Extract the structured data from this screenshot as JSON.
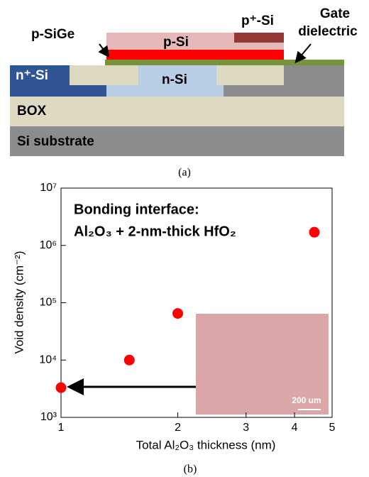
{
  "diagram": {
    "layers": [
      "Si substrate",
      "BOX",
      "n⁺-Si",
      "n-Si",
      "p-Si",
      "p⁺-Si"
    ],
    "callouts": [
      "p-SiGe",
      "Gate",
      "dielectric"
    ],
    "caption": "(a)"
  },
  "chart_data": {
    "type": "scatter",
    "caption": "(b)",
    "x_label": "Total Al₂O₃ thickness (nm)",
    "y_label": "Void density (cm⁻²)",
    "annotations": [
      "Bonding interface:",
      "Al₂O₃ + 2-nm-thick HfO₂"
    ],
    "inset_scale": "200 um",
    "x": [
      1,
      1.5,
      2,
      4.5
    ],
    "values": [
      3300,
      10000,
      65000,
      1700000
    ],
    "color": "#ff0000",
    "xlim": [
      1,
      5
    ],
    "ylim": [
      1000,
      10000000
    ],
    "log_x": true,
    "log_y": true,
    "xticks": [
      1,
      2,
      3,
      4,
      5
    ],
    "yticks": [
      {
        "value": 1000,
        "label": "10³"
      },
      {
        "value": 10000,
        "label": "10⁴"
      },
      {
        "value": 100000,
        "label": "10⁵"
      },
      {
        "value": 1000000,
        "label": "10⁶"
      },
      {
        "value": 10000000,
        "label": "10⁷"
      }
    ]
  }
}
